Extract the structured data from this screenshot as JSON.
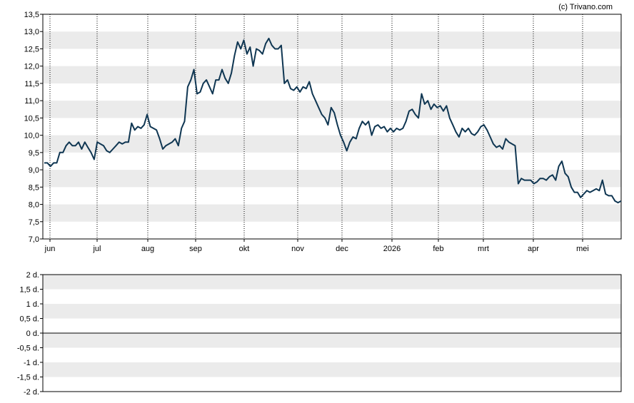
{
  "credit": "(c) Trivano.com",
  "colors": {
    "line": "#0f3652",
    "band": "#ebebeb",
    "axis": "#000000",
    "background": "#ffffff"
  },
  "chart_data": [
    {
      "type": "line",
      "title": "",
      "xlabel": "",
      "ylabel": "",
      "ylim": [
        7.0,
        13.5
      ],
      "yticks": [
        "7,0",
        "7,5",
        "8,0",
        "8,5",
        "9,0",
        "9,5",
        "10,0",
        "10,5",
        "11,0",
        "11,5",
        "12,0",
        "12,5",
        "13,0",
        "13,5"
      ],
      "xticks": [
        "jun",
        "jul",
        "aug",
        "sep",
        "okt",
        "nov",
        "dec",
        "2026",
        "feb",
        "mrt",
        "apr",
        "mei"
      ],
      "grid": "alternating horizontal bands, dotted vertical lines at month starts",
      "legend": "none",
      "series": [
        {
          "values": [
            9.2,
            9.2,
            9.1,
            9.2,
            9.2,
            9.5,
            9.5,
            9.7,
            9.8,
            9.7,
            9.7,
            9.8,
            9.6,
            9.8,
            9.65,
            9.5,
            9.3,
            9.8,
            9.75,
            9.7,
            9.55,
            9.5,
            9.6,
            9.7,
            9.8,
            9.75,
            9.8,
            9.8,
            10.35,
            10.15,
            10.25,
            10.2,
            10.3,
            10.6,
            10.25,
            10.2,
            10.15,
            9.9,
            9.6,
            9.7,
            9.75,
            9.8,
            9.9,
            9.7,
            10.2,
            10.4,
            11.4,
            11.6,
            11.9,
            11.2,
            11.25,
            11.5,
            11.6,
            11.4,
            11.2,
            11.6,
            11.6,
            11.9,
            11.65,
            11.5,
            11.8,
            12.3,
            12.7,
            12.5,
            12.75,
            12.35,
            12.55,
            12.0,
            12.5,
            12.45,
            12.35,
            12.65,
            12.8,
            12.6,
            12.5,
            12.5,
            12.6,
            11.5,
            11.6,
            11.35,
            11.3,
            11.4,
            11.25,
            11.4,
            11.35,
            11.55,
            11.2,
            11.0,
            10.8,
            10.6,
            10.5,
            10.3,
            10.8,
            10.65,
            10.3,
            10.0,
            9.8,
            9.55,
            9.8,
            9.95,
            9.9,
            10.2,
            10.4,
            10.3,
            10.4,
            10.0,
            10.25,
            10.3,
            10.2,
            10.25,
            10.1,
            10.2,
            10.1,
            10.2,
            10.15,
            10.2,
            10.4,
            10.7,
            10.75,
            10.6,
            10.5,
            11.2,
            10.9,
            11.0,
            10.75,
            10.9,
            10.8,
            10.85,
            10.7,
            10.85,
            10.5,
            10.3,
            10.1,
            9.95,
            10.2,
            10.1,
            10.2,
            10.05,
            10.0,
            10.1,
            10.25,
            10.3,
            10.15,
            9.95,
            9.75,
            9.65,
            9.7,
            9.6,
            9.9,
            9.8,
            9.75,
            9.7,
            8.6,
            8.75,
            8.7,
            8.7,
            8.7,
            8.6,
            8.65,
            8.75,
            8.75,
            8.7,
            8.8,
            8.85,
            8.7,
            9.1,
            9.25,
            8.9,
            8.8,
            8.5,
            8.35,
            8.35,
            8.2,
            8.3,
            8.4,
            8.35,
            8.4,
            8.45,
            8.4,
            8.7,
            8.3,
            8.25,
            8.25,
            8.1,
            8.05,
            8.1
          ]
        }
      ]
    },
    {
      "type": "line",
      "title": "",
      "xlabel": "",
      "ylabel": "",
      "ylim": [
        -2,
        2
      ],
      "yticks": [
        "2 d.",
        "1,5 d.",
        "1 d.",
        "0,5 d.",
        "0 d.",
        "-0,5 d.",
        "-1 d.",
        "-1,5 d.",
        "-2 d."
      ],
      "grid": "alternating horizontal bands",
      "legend": "none",
      "series": [
        {
          "values": [
            0
          ]
        }
      ]
    }
  ]
}
